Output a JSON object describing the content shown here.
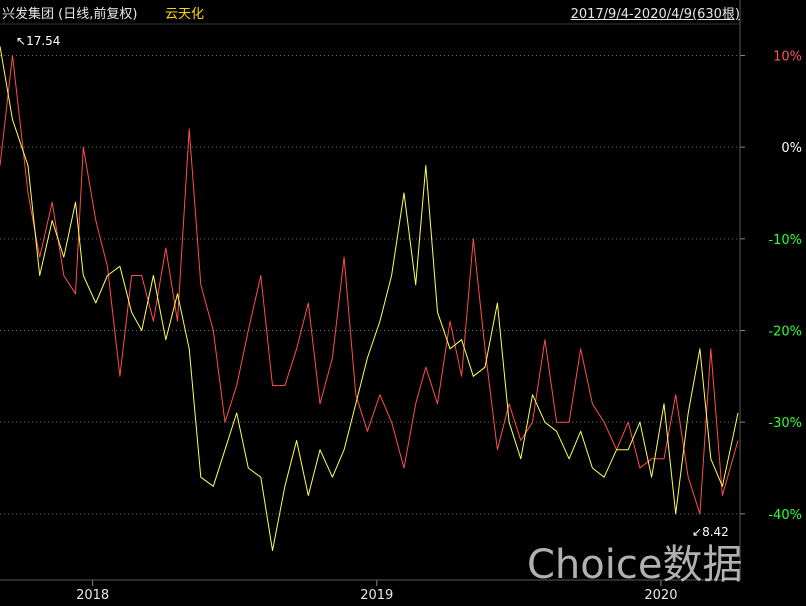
{
  "header": {
    "title": "兴发集团 (日线,前复权)",
    "compare": "云天化",
    "range": "2017/9/4-2020/4/9(630根)"
  },
  "watermark": "Choice数据",
  "chart_data": {
    "type": "line",
    "title": "兴发集团 (日线,前复权)",
    "x_range": [
      "2017-09-04",
      "2020-04-09"
    ],
    "bar_count": 630,
    "x_ticks": [
      "2018",
      "2019",
      "2020"
    ],
    "y_ticks": [
      "10%",
      "0%",
      "-10%",
      "-20%",
      "-30%",
      "-40%"
    ],
    "y_tick_values": [
      10,
      0,
      -10,
      -20,
      -30,
      -40
    ],
    "ylim": [
      -47,
      13
    ],
    "grid": true,
    "annotations": {
      "high": "17.54",
      "low": "8.42"
    },
    "colors": {
      "main": "#ff4d4d",
      "compare": "#ffff55",
      "positive": "#ff5555",
      "zero": "#ffffff",
      "negative": "#33ff33"
    },
    "series": [
      {
        "name": "兴发集团",
        "x": [
          "2017-09-04",
          "2017-09-20",
          "2017-10-10",
          "2017-10-25",
          "2017-11-10",
          "2017-11-25",
          "2017-12-10",
          "2017-12-20",
          "2018-01-05",
          "2018-01-20",
          "2018-02-05",
          "2018-02-20",
          "2018-03-05",
          "2018-03-20",
          "2018-04-05",
          "2018-04-20",
          "2018-05-05",
          "2018-05-20",
          "2018-06-05",
          "2018-06-20",
          "2018-07-05",
          "2018-07-20",
          "2018-08-05",
          "2018-08-20",
          "2018-09-05",
          "2018-09-20",
          "2018-10-05",
          "2018-10-20",
          "2018-11-05",
          "2018-11-20",
          "2018-12-05",
          "2018-12-20",
          "2019-01-05",
          "2019-01-20",
          "2019-02-05",
          "2019-02-20",
          "2019-03-05",
          "2019-03-20",
          "2019-04-05",
          "2019-04-20",
          "2019-05-05",
          "2019-05-20",
          "2019-06-05",
          "2019-06-20",
          "2019-07-05",
          "2019-07-20",
          "2019-08-05",
          "2019-08-20",
          "2019-09-05",
          "2019-09-20",
          "2019-10-05",
          "2019-10-20",
          "2019-11-05",
          "2019-11-20",
          "2019-12-05",
          "2019-12-20",
          "2020-01-05",
          "2020-01-20",
          "2020-02-05",
          "2020-02-20",
          "2020-03-05",
          "2020-03-20",
          "2020-04-09"
        ],
        "values": [
          -2,
          10,
          -5,
          -12,
          -6,
          -14,
          -16,
          0,
          -8,
          -13,
          -25,
          -14,
          -14,
          -19,
          -11,
          -19,
          2,
          -15,
          -20,
          -30,
          -26,
          -20,
          -14,
          -26,
          -26,
          -22,
          -17,
          -28,
          -23,
          -12,
          -27,
          -31,
          -27,
          -30,
          -35,
          -28,
          -24,
          -28,
          -19,
          -25,
          -10,
          -22,
          -33,
          -28,
          -32,
          -30,
          -21,
          -30,
          -30,
          -22,
          -28,
          -30,
          -33,
          -30,
          -35,
          -34,
          -34,
          -27,
          -36,
          -40,
          -22,
          -38,
          -32
        ]
      },
      {
        "name": "云天化",
        "x": [
          "2017-09-04",
          "2017-09-20",
          "2017-10-10",
          "2017-10-25",
          "2017-11-10",
          "2017-11-25",
          "2017-12-10",
          "2017-12-20",
          "2018-01-05",
          "2018-01-20",
          "2018-02-05",
          "2018-02-20",
          "2018-03-05",
          "2018-03-20",
          "2018-04-05",
          "2018-04-20",
          "2018-05-05",
          "2018-05-20",
          "2018-06-05",
          "2018-06-20",
          "2018-07-05",
          "2018-07-20",
          "2018-08-05",
          "2018-08-20",
          "2018-09-05",
          "2018-09-20",
          "2018-10-05",
          "2018-10-20",
          "2018-11-05",
          "2018-11-20",
          "2018-12-05",
          "2018-12-20",
          "2019-01-05",
          "2019-01-20",
          "2019-02-05",
          "2019-02-20",
          "2019-03-05",
          "2019-03-20",
          "2019-04-05",
          "2019-04-20",
          "2019-05-05",
          "2019-05-20",
          "2019-06-05",
          "2019-06-20",
          "2019-07-05",
          "2019-07-20",
          "2019-08-05",
          "2019-08-20",
          "2019-09-05",
          "2019-09-20",
          "2019-10-05",
          "2019-10-20",
          "2019-11-05",
          "2019-11-20",
          "2019-12-05",
          "2019-12-20",
          "2020-01-05",
          "2020-01-20",
          "2020-02-05",
          "2020-02-20",
          "2020-03-05",
          "2020-03-20",
          "2020-04-09"
        ],
        "values": [
          11,
          3,
          -2,
          -14,
          -8,
          -12,
          -6,
          -14,
          -17,
          -14,
          -13,
          -18,
          -20,
          -14,
          -21,
          -16,
          -22,
          -36,
          -37,
          -33,
          -29,
          -35,
          -36,
          -44,
          -37,
          -32,
          -38,
          -33,
          -36,
          -33,
          -28,
          -23,
          -19,
          -14,
          -5,
          -15,
          -2,
          -18,
          -22,
          -21,
          -25,
          -24,
          -17,
          -30,
          -34,
          -27,
          -30,
          -31,
          -34,
          -31,
          -35,
          -36,
          -33,
          -33,
          -30,
          -36,
          -28,
          -40,
          -29,
          -22,
          -34,
          -37,
          -29
        ]
      }
    ]
  }
}
